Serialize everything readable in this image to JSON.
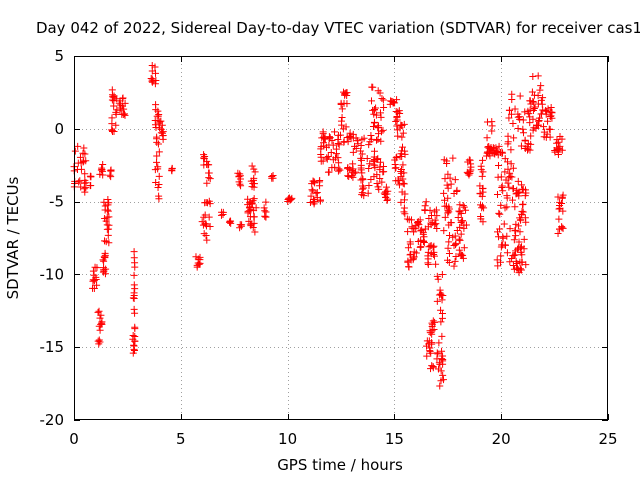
{
  "chart_data": {
    "type": "scatter",
    "title": "Day 042 of 2022, Sidereal Day-to-day VTEC variation (SDTVAR) for receiver cas1",
    "xlabel": "GPS time / hours",
    "ylabel": "SDTVAR / TECUs",
    "xlim": [
      0,
      25
    ],
    "ylim": [
      -20,
      5
    ],
    "xticks": [
      0,
      5,
      10,
      15,
      20,
      25
    ],
    "yticks": [
      5,
      0,
      -5,
      -10,
      -15,
      -20
    ],
    "xtick_labels": [
      "0",
      "5",
      "10",
      "15",
      "20",
      "25"
    ],
    "ytick_labels": [
      "5",
      "0",
      "-5",
      "-10",
      "-15",
      "-20"
    ],
    "grid": true,
    "marker": "+",
    "color": "#ff0000",
    "segments": [
      {
        "x0": 0.0,
        "x1": 0.6,
        "lo": -4.5,
        "hi": -1.2
      },
      {
        "x0": 0.75,
        "x1": 0.8,
        "lo": -4.0,
        "hi": -2.8
      },
      {
        "x0": 0.85,
        "x1": 1.1,
        "lo": -11.0,
        "hi": -9.5
      },
      {
        "x0": 1.1,
        "x1": 1.35,
        "lo": -14.8,
        "hi": -12.5
      },
      {
        "x0": 1.2,
        "x1": 1.35,
        "lo": -3.2,
        "hi": -2.4
      },
      {
        "x0": 1.35,
        "x1": 1.5,
        "lo": -10.0,
        "hi": -5.0
      },
      {
        "x0": 1.5,
        "x1": 1.65,
        "lo": -8.0,
        "hi": -4.5
      },
      {
        "x0": 1.65,
        "x1": 1.75,
        "lo": -3.3,
        "hi": -2.6
      },
      {
        "x0": 1.75,
        "x1": 2.05,
        "lo": -0.2,
        "hi": 3.2
      },
      {
        "x0": 2.1,
        "x1": 2.4,
        "lo": 0.8,
        "hi": 2.6
      },
      {
        "x0": 2.75,
        "x1": 2.85,
        "lo": -15.6,
        "hi": -8.2
      },
      {
        "x0": 3.6,
        "x1": 3.85,
        "lo": 2.8,
        "hi": 4.4
      },
      {
        "x0": 3.8,
        "x1": 4.0,
        "lo": -4.9,
        "hi": 1.8
      },
      {
        "x0": 4.0,
        "x1": 4.2,
        "lo": -0.9,
        "hi": 0.6
      },
      {
        "x0": 4.55,
        "x1": 4.6,
        "lo": -2.9,
        "hi": -2.7
      },
      {
        "x0": 5.7,
        "x1": 5.9,
        "lo": -9.6,
        "hi": -8.7
      },
      {
        "x0": 6.0,
        "x1": 6.4,
        "lo": -7.8,
        "hi": -1.5
      },
      {
        "x0": 6.9,
        "x1": 7.0,
        "lo": -6.0,
        "hi": -5.7
      },
      {
        "x0": 7.2,
        "x1": 7.35,
        "lo": -6.5,
        "hi": -6.3
      },
      {
        "x0": 7.6,
        "x1": 7.8,
        "lo": -4.0,
        "hi": -3.0
      },
      {
        "x0": 7.75,
        "x1": 7.85,
        "lo": -6.9,
        "hi": -6.4
      },
      {
        "x0": 8.1,
        "x1": 8.3,
        "lo": -6.9,
        "hi": -4.4
      },
      {
        "x0": 8.3,
        "x1": 8.55,
        "lo": -7.4,
        "hi": -2.5
      },
      {
        "x0": 8.9,
        "x1": 9.0,
        "lo": -6.4,
        "hi": -4.9
      },
      {
        "x0": 9.25,
        "x1": 9.35,
        "lo": -3.4,
        "hi": -3.2
      },
      {
        "x0": 10.0,
        "x1": 10.2,
        "lo": -5.0,
        "hi": -4.7
      },
      {
        "x0": 11.0,
        "x1": 11.55,
        "lo": -5.2,
        "hi": -3.5
      },
      {
        "x0": 11.55,
        "x1": 11.9,
        "lo": -2.5,
        "hi": 0.0
      },
      {
        "x0": 11.9,
        "x1": 12.5,
        "lo": -3.2,
        "hi": -0.2
      },
      {
        "x0": 12.5,
        "x1": 12.8,
        "lo": -1.0,
        "hi": 2.6
      },
      {
        "x0": 12.8,
        "x1": 13.3,
        "lo": -3.7,
        "hi": -0.2
      },
      {
        "x0": 13.4,
        "x1": 13.9,
        "lo": -4.8,
        "hi": -0.5
      },
      {
        "x0": 13.9,
        "x1": 14.5,
        "lo": -1.0,
        "hi": 3.0
      },
      {
        "x0": 14.0,
        "x1": 14.5,
        "lo": -4.3,
        "hi": -1.5
      },
      {
        "x0": 14.5,
        "x1": 14.7,
        "lo": -5.0,
        "hi": -3.8
      },
      {
        "x0": 14.8,
        "x1": 15.0,
        "lo": 1.6,
        "hi": 2.0
      },
      {
        "x0": 15.0,
        "x1": 15.3,
        "lo": -4.0,
        "hi": 2.4
      },
      {
        "x0": 15.3,
        "x1": 15.5,
        "lo": -6.0,
        "hi": 0.6
      },
      {
        "x0": 15.6,
        "x1": 16.1,
        "lo": -9.5,
        "hi": -6.0
      },
      {
        "x0": 16.1,
        "x1": 16.5,
        "lo": -8.5,
        "hi": -5.0
      },
      {
        "x0": 16.5,
        "x1": 17.0,
        "lo": -9.5,
        "hi": -5.0
      },
      {
        "x0": 16.5,
        "x1": 17.0,
        "lo": -16.5,
        "hi": -13.0
      },
      {
        "x0": 17.0,
        "x1": 17.3,
        "lo": -17.8,
        "hi": -10.0
      },
      {
        "x0": 17.3,
        "x1": 18.0,
        "lo": -10.0,
        "hi": -2.0
      },
      {
        "x0": 18.0,
        "x1": 18.4,
        "lo": -9.0,
        "hi": -5.0
      },
      {
        "x0": 18.4,
        "x1": 18.6,
        "lo": -3.5,
        "hi": -2.0
      },
      {
        "x0": 19.0,
        "x1": 19.2,
        "lo": -6.4,
        "hi": -2.0
      },
      {
        "x0": 19.3,
        "x1": 19.6,
        "lo": -2.4,
        "hi": 0.6
      },
      {
        "x0": 19.6,
        "x1": 19.8,
        "lo": -1.8,
        "hi": -1.0
      },
      {
        "x0": 19.8,
        "x1": 20.3,
        "lo": -9.5,
        "hi": -1.0
      },
      {
        "x0": 20.3,
        "x1": 21.0,
        "lo": -10.0,
        "hi": 2.6
      },
      {
        "x0": 20.6,
        "x1": 21.2,
        "lo": -10.0,
        "hi": -4.0
      },
      {
        "x0": 21.0,
        "x1": 21.4,
        "lo": -1.5,
        "hi": 2.0
      },
      {
        "x0": 21.4,
        "x1": 22.0,
        "lo": -0.3,
        "hi": 3.8
      },
      {
        "x0": 22.0,
        "x1": 22.4,
        "lo": -0.8,
        "hi": 1.6
      },
      {
        "x0": 22.5,
        "x1": 22.9,
        "lo": -1.8,
        "hi": -0.5
      },
      {
        "x0": 22.6,
        "x1": 22.9,
        "lo": -7.2,
        "hi": -4.5
      }
    ]
  }
}
